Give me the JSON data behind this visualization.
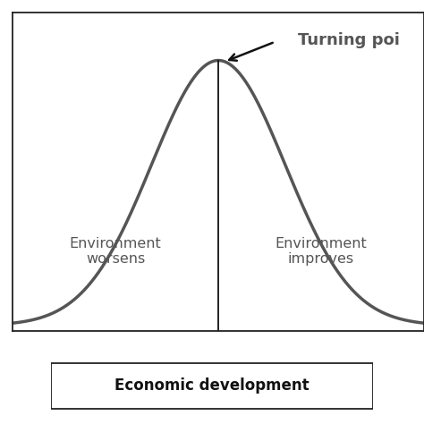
{
  "curve_color": "#555555",
  "curve_linewidth": 2.5,
  "vline_color": "#111111",
  "vline_linewidth": 1.3,
  "text_left": "Environment\nworsens",
  "text_right": "Environment\nimproves",
  "text_turning": "Turning poi",
  "text_econ": "Economic development",
  "text_color_labels": "#555555",
  "text_color_turning": "#555555",
  "text_color_econ": "#111111",
  "bg_color": "#ffffff",
  "border_color": "#222222",
  "box_color": "#222222",
  "sigma": 1.3,
  "x_min": -4.0,
  "x_max": 4.0,
  "y_min": -0.02,
  "y_max": 1.18,
  "arrow_color": "#111111",
  "fontsize_labels": 11.5,
  "fontsize_turning": 13,
  "fontsize_econ": 12
}
